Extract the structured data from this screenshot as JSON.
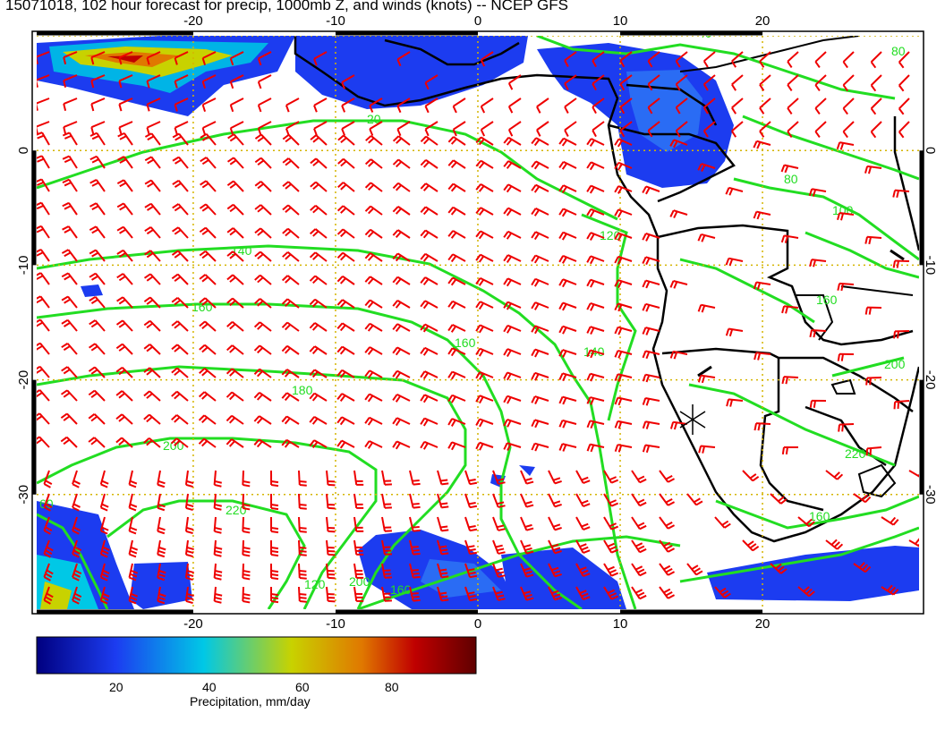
{
  "title": "15071018, 102 hour forecast for precip, 1000mb Z, and winds (knots) -- NCEP GFS",
  "map": {
    "lon_range": [
      -31,
      31
    ],
    "lat_range": [
      -40,
      10
    ],
    "lon_ticks": [
      "-20",
      "-10",
      "0",
      "10",
      "20"
    ],
    "lat_ticks": [
      "0",
      "-10",
      "-20",
      "-30"
    ],
    "gridline_style": "dotted",
    "colors": {
      "contour": "#22dd22",
      "barb": "#ee0000",
      "coast": "#000000",
      "grid": "#d4b400"
    },
    "contour_labels": [
      "20",
      "40",
      "60",
      "80",
      "100",
      "120",
      "140",
      "160",
      "180",
      "200",
      "220"
    ],
    "marker": "asterisk-icon"
  },
  "colorbar": {
    "ticks": [
      "20",
      "40",
      "60",
      "80"
    ],
    "range": [
      0,
      100
    ],
    "title": "Precipitation, mm/day",
    "colors": [
      "#000080",
      "#1c3cf0",
      "#00c8e6",
      "#c8d200",
      "#e07800",
      "#c00000",
      "#600000"
    ]
  }
}
